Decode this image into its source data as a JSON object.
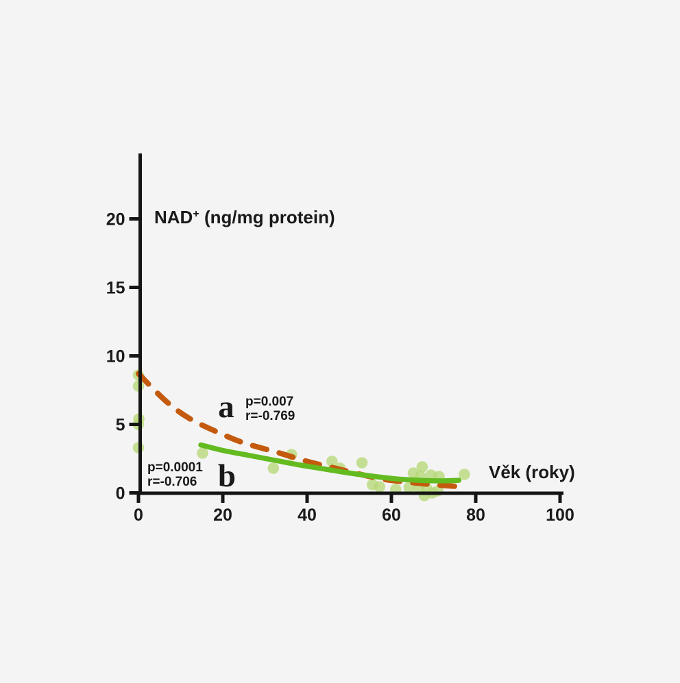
{
  "figure": {
    "background": "#f5f4f5"
  },
  "chart_data": {
    "type": "scatter",
    "title": "",
    "ylabel_main": "NAD",
    "ylabel_sup": "+",
    "ylabel_rest": " (ng/mg protein)",
    "xlabel": "Věk (roky)",
    "x_ticks": [
      0,
      20,
      40,
      60,
      80,
      100
    ],
    "y_ticks": [
      0,
      5,
      10,
      15,
      20
    ],
    "xlim": [
      0,
      101
    ],
    "ylim": [
      0,
      25
    ],
    "grid": false,
    "colors": {
      "axis": "#151515",
      "text": "#1a1a1a",
      "curve_a": "#c35a0e",
      "curve_b": "#63bb20",
      "points": "#b6d877"
    },
    "points": [
      [
        0,
        8.6
      ],
      [
        0,
        7.8
      ],
      [
        0.1,
        5.4
      ],
      [
        0,
        5.0
      ],
      [
        0,
        3.3
      ],
      [
        15.2,
        2.9
      ],
      [
        32,
        1.8
      ],
      [
        36.3,
        2.8
      ],
      [
        45.9,
        2.3
      ],
      [
        47.8,
        1.8
      ],
      [
        53,
        2.2
      ],
      [
        55.5,
        0.6
      ],
      [
        57.2,
        0.45
      ],
      [
        61,
        0.25
      ],
      [
        64.2,
        0.4
      ],
      [
        65.2,
        1.45
      ],
      [
        66.5,
        0.35
      ],
      [
        66.9,
        1.2
      ],
      [
        67.3,
        1.9
      ],
      [
        67.8,
        -0.2
      ],
      [
        68.4,
        0.3
      ],
      [
        69.4,
        1.3
      ],
      [
        69.7,
        0.0
      ],
      [
        71,
        0.15
      ],
      [
        71.3,
        1.2
      ],
      [
        77.3,
        1.35
      ]
    ],
    "curves": [
      {
        "id": "a",
        "label": "a",
        "style": "dashed",
        "stat_lines": [
          "p=0.007",
          "r=-0.769"
        ],
        "points": [
          [
            0,
            8.7
          ],
          [
            6.5,
            6.7
          ],
          [
            12,
            5.45
          ],
          [
            19,
            4.4
          ],
          [
            25,
            3.65
          ],
          [
            33,
            2.95
          ],
          [
            40,
            2.3
          ],
          [
            46,
            1.85
          ],
          [
            52,
            1.4
          ],
          [
            58,
            1.0
          ],
          [
            64,
            0.78
          ],
          [
            70,
            0.6
          ],
          [
            76.5,
            0.45
          ]
        ]
      },
      {
        "id": "b",
        "label": "b",
        "style": "solid",
        "stat_lines": [
          "p=0.0001",
          "r=-0.706"
        ],
        "points": [
          [
            14.8,
            3.5
          ],
          [
            20,
            3.1
          ],
          [
            26,
            2.75
          ],
          [
            32,
            2.4
          ],
          [
            38,
            2.05
          ],
          [
            44,
            1.75
          ],
          [
            50,
            1.45
          ],
          [
            56,
            1.2
          ],
          [
            62,
            1.0
          ],
          [
            68,
            0.9
          ],
          [
            72,
            0.88
          ],
          [
            76,
            0.92
          ]
        ]
      }
    ]
  }
}
